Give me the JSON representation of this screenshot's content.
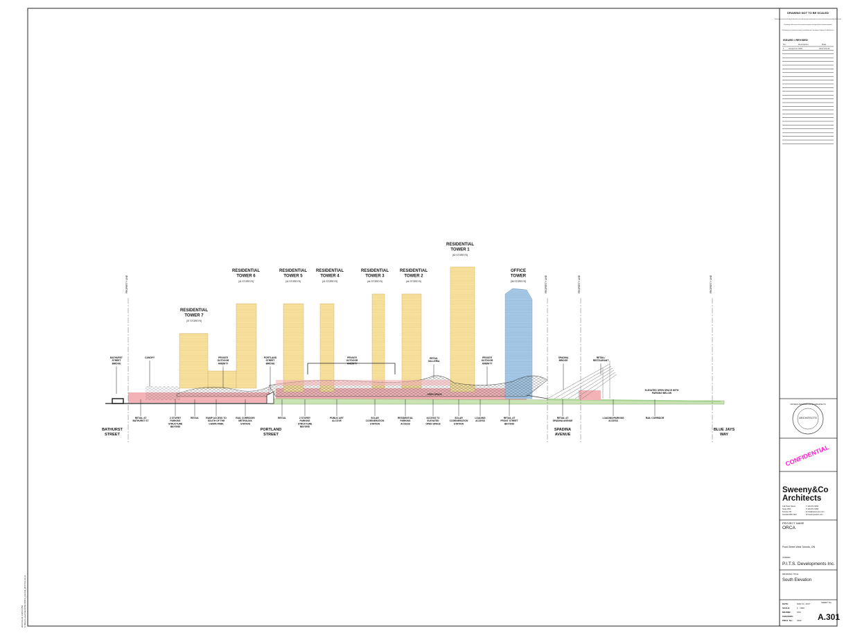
{
  "margin_note": [
    "2017-03-31 3:28:14 PM",
    "C:\\Revit Local Files\\1602 ORCA_Central_2017-03-31.rvt"
  ],
  "title_block": {
    "warning": "DRAWING NOT TO BE SCALED",
    "notes": [
      "Contractor must check and verify all dimensions on the job and report any discrepancies to the architect before proceeding with the work.",
      "This drawing shall not be used for construction purposes until signed by the consultant responsible.",
      "This drawing, as an instrument of service, is provided by and is the property of Sweeny & Co Architects Inc."
    ],
    "issued_heading": "ISSUED / REVISED",
    "issued_columns": [
      "No.",
      "Description",
      "Date"
    ],
    "issued_rows": [
      [
        "1",
        "Issued for OPA",
        "2017-03-31"
      ]
    ],
    "stamp": {
      "ring": "ONTARIO ASSOCIATION OF ARCHITECTS",
      "center": "ARCHITECTS"
    },
    "confidential": "CONFIDENTIAL",
    "firm": [
      "Sweeny&Co",
      "Architects"
    ],
    "address": [
      "134 Peter Street",
      "Suite 1601",
      "Toronto ON",
      "Canada M5V 2H2"
    ],
    "contact": [
      "T 416.971.6252",
      "F 416.971.6250",
      "E info@sweenyco.com",
      "W sweenyandco.com"
    ],
    "project_label": "PROJECT NAME",
    "project": "ORCA",
    "location": "Front Street West Toronto, ON",
    "owner_label": "OWNER",
    "owner": "P.I.T.S. Developments Inc.",
    "drawing_title_label": "DRAWING TITLE",
    "drawing_title": "South Elevation",
    "info": [
      [
        "DATE:",
        "MAR 31, 2017"
      ],
      [
        "SCALE:",
        "1 : 1000"
      ],
      [
        "DRAWN:",
        "SSC"
      ],
      [
        "CHECKED:",
        ""
      ],
      [
        "PROJ. No.:",
        "1602"
      ]
    ],
    "sheet_label": "SHEET No.",
    "sheet": "A.301"
  },
  "towers": [
    {
      "name": [
        "RESIDENTIAL",
        "TOWER 7"
      ],
      "storeys": "(37 STOREYS)"
    },
    {
      "name": [
        "RESIDENTIAL",
        "TOWER 6"
      ],
      "storeys": "(41 STOREYS)"
    },
    {
      "name": [
        "RESIDENTIAL",
        "TOWER 5"
      ],
      "storeys": "(41 STOREYS)"
    },
    {
      "name": [
        "RESIDENTIAL",
        "TOWER 4"
      ],
      "storeys": "(41 STOREYS)"
    },
    {
      "name": [
        "RESIDENTIAL",
        "TOWER 3"
      ],
      "storeys": "(44 STOREYS)"
    },
    {
      "name": [
        "RESIDENTIAL",
        "TOWER 2"
      ],
      "storeys": "(44 STOREYS)"
    },
    {
      "name": [
        "RESIDENTIAL",
        "TOWER 1"
      ],
      "storeys": "(62 STOREYS)"
    },
    {
      "name": [
        "OFFICE",
        "TOWER"
      ],
      "storeys": "(36 STOREYS)"
    }
  ],
  "property_line": "PROPERTY LINE",
  "top_callouts": [
    [
      "BATHURST",
      "STREET",
      "BRIDGE"
    ],
    [
      "CANOPY"
    ],
    [
      "PRIVATE",
      "OUTDOOR",
      "AMENITY"
    ],
    [
      "PORTLAND",
      "STREET",
      "BRIDGE"
    ],
    [
      "PRIVATE",
      "OUTDOOR",
      "AMENITY"
    ],
    [
      "RETAIL",
      "GALLERIA"
    ],
    [
      "PRIVATE",
      "OUTDOOR",
      "AMENITY"
    ],
    [
      "SPADINA",
      "BRIDGE"
    ],
    [
      "RETAIL/",
      "RESTAURANT"
    ],
    [
      "ELEVATED OPEN SPACE WITH",
      "PARKING BELOW"
    ],
    [
      "OPEN SPACE"
    ]
  ],
  "bottom_callouts": [
    [
      "RETAIL AT",
      "BATHURST ST"
    ],
    [
      "2 STOREY",
      "PARKING",
      "STRUCTURE",
      "BEYOND"
    ],
    [
      "RETAIL"
    ],
    [
      "RAMP ACCESS TO",
      "SOUTH OF THE",
      "CANPA PARK"
    ],
    [
      "RAIL CORRIDOR/",
      "METROLINX",
      "STATION"
    ],
    [
      "RETAIL"
    ],
    [
      "2 STOREY",
      "PARKING",
      "STRUCTURE",
      "BEYOND"
    ],
    [
      "PUBLIC ART",
      "ALCOVE"
    ],
    [
      "SOLAR",
      "COGENERATION",
      "STATION"
    ],
    [
      "RESIDENTIAL",
      "PARKING",
      "ACCESS"
    ],
    [
      "ACCESS TO",
      "ELEVATED",
      "OPEN SPACE"
    ],
    [
      "SOLAR",
      "COGENERATION",
      "STATION"
    ],
    [
      "LOADING",
      "ACCESS"
    ],
    [
      "RETAIL AT",
      "FRONT STREET",
      "BEYOND"
    ],
    [
      "RETAIL AT",
      "SPADINA AVENUE"
    ],
    [
      "LOADING/PARKING",
      "ACCESS"
    ],
    [
      "RAIL CORRIDOR"
    ]
  ],
  "streets": [
    [
      "BATHURST",
      "STREET"
    ],
    [
      "PORTLAND",
      "STREET"
    ],
    [
      "SPADINA",
      "AVENUE"
    ],
    [
      "BLUE JAYS",
      "WAY"
    ]
  ]
}
